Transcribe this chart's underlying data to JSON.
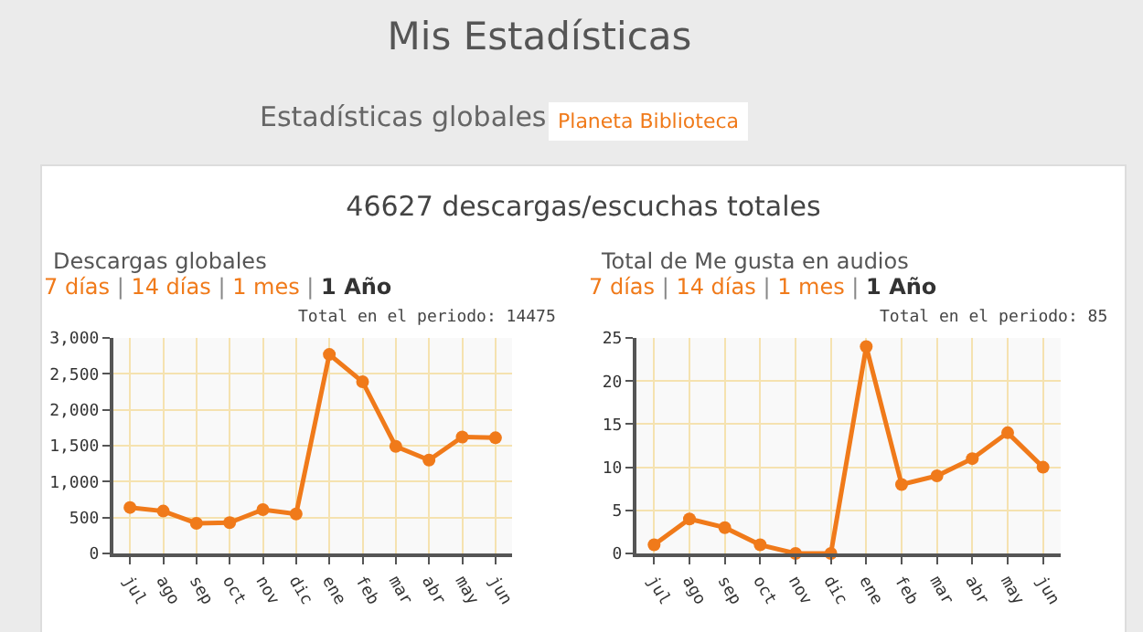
{
  "chart_data": [
    {
      "type": "other",
      "title": "Mis Estadísticas",
      "subtitle": "Estadísticas globales",
      "annotations": [
        "Planeta Biblioteca",
        "46627 descargas/escuchas totales"
      ]
    },
    {
      "type": "line",
      "title": "Descargas globales",
      "annotations": [
        "7 días | 14 días | 1 mes | 1 Año",
        "Total en el periodo: 14475"
      ],
      "categories": [
        "jul",
        "ago",
        "sep",
        "oct",
        "nov",
        "dic",
        "ene",
        "feb",
        "mar",
        "abr",
        "may",
        "jun"
      ],
      "series": [
        {
          "color": "#f07a1a",
          "values": [
            640,
            590,
            420,
            430,
            610,
            550,
            2770,
            2390,
            1490,
            1300,
            1620,
            1610
          ]
        }
      ],
      "ylim": [
        0,
        3000
      ],
      "yticks": [
        {
          "value": 0,
          "label": "0"
        },
        {
          "value": 500,
          "label": "500"
        },
        {
          "value": 1000,
          "label": "1,000"
        },
        {
          "value": 1500,
          "label": "1,500"
        },
        {
          "value": 2000,
          "label": "2,000"
        },
        {
          "value": 2500,
          "label": "2,500"
        },
        {
          "value": 3000,
          "label": "3,000"
        }
      ],
      "grid": true,
      "marker": "circle",
      "line_style": "solid",
      "legend": false
    },
    {
      "type": "line",
      "title": "Total de Me gusta en audios",
      "annotations": [
        "7 días | 14 días | 1 mes | 1 Año",
        "Total en el periodo: 85"
      ],
      "categories": [
        "jul",
        "ago",
        "sep",
        "oct",
        "nov",
        "dic",
        "ene",
        "feb",
        "mar",
        "abr",
        "may",
        "jun"
      ],
      "series": [
        {
          "color": "#f07a1a",
          "values": [
            1,
            4,
            3,
            1,
            0,
            0,
            24,
            8,
            9,
            11,
            14,
            10
          ]
        }
      ],
      "ylim": [
        0,
        25
      ],
      "yticks": [
        0,
        5,
        10,
        15,
        20,
        25
      ],
      "grid": true,
      "marker": "circle",
      "line_style": "solid",
      "legend": false
    }
  ]
}
